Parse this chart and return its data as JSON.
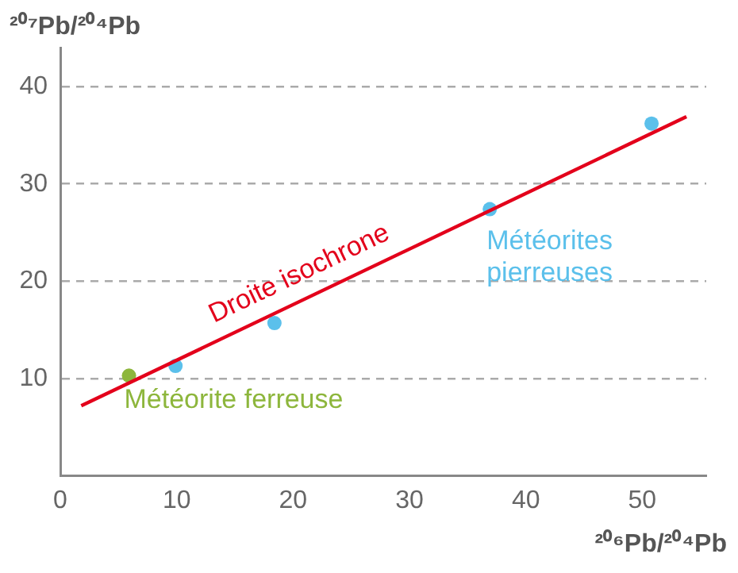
{
  "chart_data": {
    "type": "scatter",
    "xlabel": "²⁰⁶Pb/²⁰⁴Pb",
    "ylabel": "²⁰⁷Pb/²⁰⁴Pb",
    "xlim": [
      0,
      55.5
    ],
    "ylim": [
      0,
      44
    ],
    "xticks": [
      0,
      10,
      20,
      30,
      40,
      50
    ],
    "yticks": [
      10,
      20,
      30,
      40
    ],
    "grid": "y",
    "legend": false,
    "series": [
      {
        "name": "Droite isochrone",
        "type": "line",
        "marker": "none",
        "color": "#e3001b",
        "x": [
          1.8,
          53.8
        ],
        "values": [
          7.2,
          36.9
        ]
      },
      {
        "name": "Météorite ferreuse",
        "marker": "circle",
        "color": "#8db63c",
        "x": [
          5.9
        ],
        "values": [
          10.3
        ]
      },
      {
        "name": "Météorites pierreuses",
        "marker": "circle",
        "color": "#5bc0eb",
        "x": [
          9.9,
          18.4,
          36.9,
          50.8
        ],
        "values": [
          11.3,
          15.7,
          27.4,
          36.2
        ]
      }
    ]
  }
}
